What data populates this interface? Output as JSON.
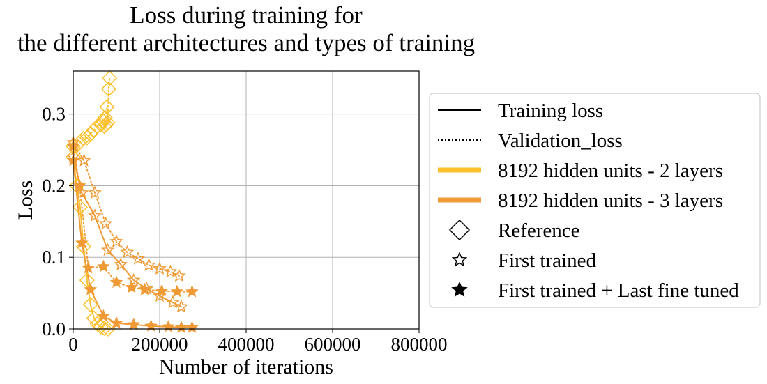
{
  "chart_data": {
    "type": "line",
    "title_line1": "Loss during training for",
    "title_line2": "the different architectures and types of training",
    "xlabel": "Number of iterations",
    "ylabel": "Loss",
    "xlim": [
      0,
      800000
    ],
    "ylim": [
      0,
      0.36
    ],
    "xticks": [
      0,
      200000,
      400000,
      600000,
      800000
    ],
    "xtick_labels": [
      "0",
      "200000",
      "400000",
      "600000",
      "800000"
    ],
    "yticks": [
      0.0,
      0.1,
      0.2,
      0.3
    ],
    "ytick_labels": [
      "0.0",
      "0.1",
      "0.2",
      "0.3"
    ],
    "grid": true,
    "legend_position": "right-outside",
    "colors": {
      "two_layers": "#fbc02d",
      "three_layers": "#ef9a35"
    },
    "legend": [
      {
        "label": "Training loss",
        "kind": "solid-line"
      },
      {
        "label": "Validation_loss",
        "kind": "dotted-line"
      },
      {
        "label": "8192 hidden units - 2 layers",
        "kind": "thick-line",
        "color": "#fbc02d"
      },
      {
        "label": "8192 hidden units - 3 layers",
        "kind": "thick-line",
        "color": "#ef9a35"
      },
      {
        "label": "Reference",
        "kind": "diamond-marker"
      },
      {
        "label": "First trained",
        "kind": "hollow-star-marker"
      },
      {
        "label": "First trained + Last fine tuned",
        "kind": "filled-star-marker"
      }
    ],
    "series": [
      {
        "architecture": "2 layers",
        "training": "Reference",
        "loss": "training",
        "color": "#fbc02d",
        "marker": "diamond",
        "style": "solid",
        "x": [
          0,
          8000,
          16000,
          24000,
          32000,
          40000,
          48000,
          56000,
          64000,
          72000,
          80000
        ],
        "y": [
          0.24,
          0.2,
          0.17,
          0.115,
          0.068,
          0.034,
          0.015,
          0.007,
          0.003,
          0.001,
          0.0
        ]
      },
      {
        "architecture": "2 layers",
        "training": "Reference",
        "loss": "validation",
        "color": "#fbc02d",
        "marker": "diamond",
        "style": "dotted",
        "x": [
          0,
          8000,
          16000,
          24000,
          32000,
          40000,
          48000,
          56000,
          64000,
          70000,
          72000,
          74000,
          76000,
          78000,
          80000,
          82000,
          84000
        ],
        "y": [
          0.255,
          0.256,
          0.261,
          0.266,
          0.267,
          0.272,
          0.278,
          0.283,
          0.285,
          0.29,
          0.283,
          0.295,
          0.285,
          0.31,
          0.288,
          0.335,
          0.35
        ]
      },
      {
        "architecture": "3 layers",
        "training": "First trained",
        "loss": "training",
        "color": "#ef9a35",
        "marker": "hollow-star",
        "style": "solid",
        "x": [
          0,
          20000,
          50000,
          80000,
          110000,
          140000,
          170000,
          200000,
          230000,
          250000
        ],
        "y": [
          0.24,
          0.19,
          0.158,
          0.11,
          0.09,
          0.068,
          0.056,
          0.046,
          0.037,
          0.031
        ]
      },
      {
        "architecture": "3 layers",
        "training": "First trained",
        "loss": "validation",
        "color": "#ef9a35",
        "marker": "hollow-star",
        "style": "dotted",
        "x": [
          0,
          25000,
          50000,
          75000,
          100000,
          125000,
          150000,
          175000,
          200000,
          225000,
          245000
        ],
        "y": [
          0.26,
          0.235,
          0.19,
          0.147,
          0.122,
          0.107,
          0.098,
          0.089,
          0.084,
          0.08,
          0.074
        ]
      },
      {
        "architecture": "3 layers",
        "training": "First trained + Last fine tuned",
        "loss": "training",
        "color": "#ef9a35",
        "marker": "filled-star",
        "style": "solid",
        "x": [
          0,
          20000,
          40000,
          70000,
          100000,
          140000,
          180000,
          220000,
          250000,
          275000
        ],
        "y": [
          0.235,
          0.12,
          0.055,
          0.018,
          0.008,
          0.006,
          0.004,
          0.003,
          0.002,
          0.002
        ]
      },
      {
        "architecture": "3 layers",
        "training": "First trained + Last fine tuned",
        "loss": "validation",
        "color": "#ef9a35",
        "marker": "filled-star",
        "style": "dotted",
        "x": [
          0,
          15000,
          35000,
          70000,
          100000,
          135000,
          165000,
          205000,
          240000,
          275000
        ],
        "y": [
          0.255,
          0.2,
          0.085,
          0.087,
          0.065,
          0.058,
          0.055,
          0.053,
          0.052,
          0.052
        ]
      }
    ]
  }
}
